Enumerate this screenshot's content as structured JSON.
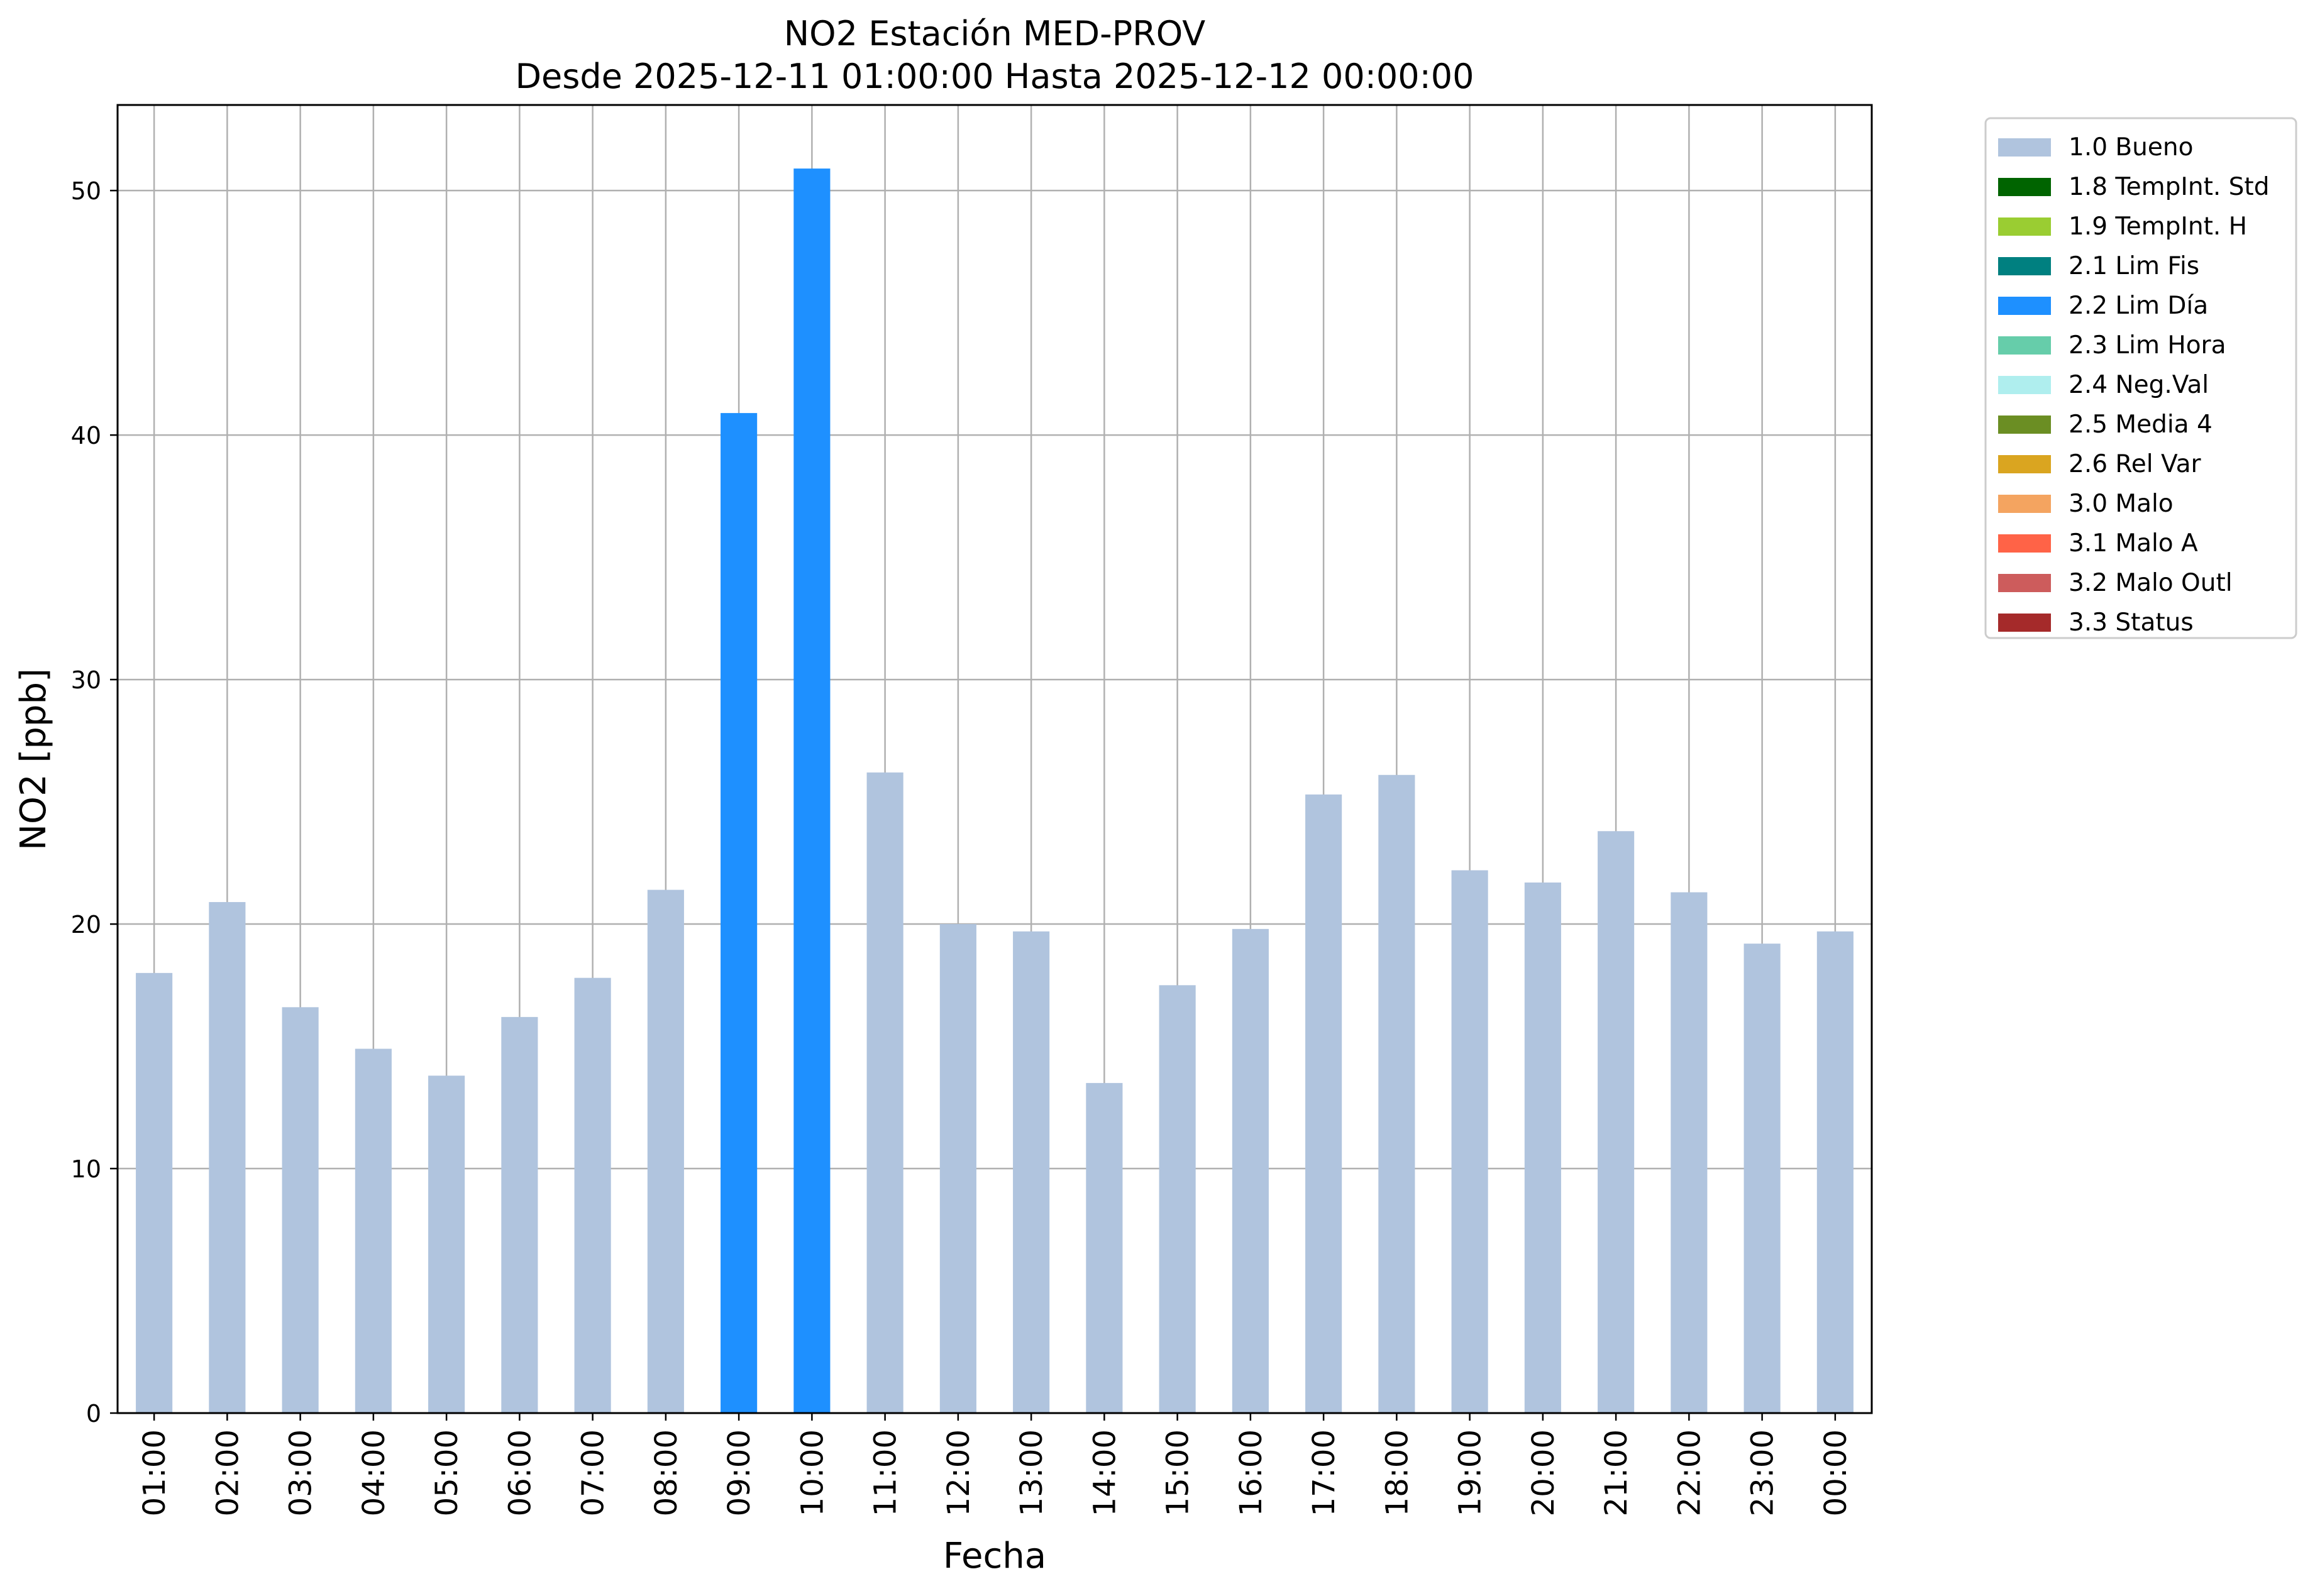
{
  "chart_data": {
    "type": "bar",
    "title": "NO2 Estación MED-PROV",
    "subtitle": "Desde 2025-12-11 01:00:00 Hasta 2025-12-12 00:00:00",
    "xlabel": "Fecha",
    "ylabel": "NO2 [ppb]",
    "ylim": [
      0,
      53.5
    ],
    "yticks": [
      0,
      10,
      20,
      30,
      40,
      50
    ],
    "grid": true,
    "legend_position": "outside-top-right",
    "categories": [
      "01:00",
      "02:00",
      "03:00",
      "04:00",
      "05:00",
      "06:00",
      "07:00",
      "08:00",
      "09:00",
      "10:00",
      "11:00",
      "12:00",
      "13:00",
      "14:00",
      "15:00",
      "16:00",
      "17:00",
      "18:00",
      "19:00",
      "20:00",
      "21:00",
      "22:00",
      "23:00",
      "00:00"
    ],
    "values": [
      18.0,
      20.9,
      16.6,
      14.9,
      13.8,
      16.2,
      17.8,
      21.4,
      40.9,
      50.9,
      26.2,
      20.0,
      19.7,
      13.5,
      17.5,
      19.8,
      25.3,
      26.1,
      22.2,
      21.7,
      23.8,
      21.3,
      19.2,
      19.7
    ],
    "flags": [
      "1.0 Bueno",
      "1.0 Bueno",
      "1.0 Bueno",
      "1.0 Bueno",
      "1.0 Bueno",
      "1.0 Bueno",
      "1.0 Bueno",
      "1.0 Bueno",
      "2.2 Lim Día",
      "2.2 Lim Día",
      "1.0 Bueno",
      "1.0 Bueno",
      "1.0 Bueno",
      "1.0 Bueno",
      "1.0 Bueno",
      "1.0 Bueno",
      "1.0 Bueno",
      "1.0 Bueno",
      "1.0 Bueno",
      "1.0 Bueno",
      "1.0 Bueno",
      "1.0 Bueno",
      "1.0 Bueno",
      "1.0 Bueno"
    ],
    "legend": [
      {
        "label": "1.0 Bueno",
        "color": "#b0c4de"
      },
      {
        "label": "1.8 TempInt. Std",
        "color": "#006400"
      },
      {
        "label": "1.9 TempInt. H",
        "color": "#9acd32"
      },
      {
        "label": "2.1 Lim Fis",
        "color": "#008080"
      },
      {
        "label": "2.2 Lim Día",
        "color": "#1e90ff"
      },
      {
        "label": "2.3 Lim Hora",
        "color": "#66cdaa"
      },
      {
        "label": "2.4 Neg.Val",
        "color": "#afeeee"
      },
      {
        "label": "2.5 Media 4",
        "color": "#6b8e23"
      },
      {
        "label": "2.6 Rel Var",
        "color": "#daa520"
      },
      {
        "label": "3.0 Malo",
        "color": "#f4a460"
      },
      {
        "label": "3.1 Malo A",
        "color": "#ff6347"
      },
      {
        "label": "3.2 Malo Outl",
        "color": "#cd5c5c"
      },
      {
        "label": "3.3 Status",
        "color": "#a52a2a"
      }
    ]
  }
}
